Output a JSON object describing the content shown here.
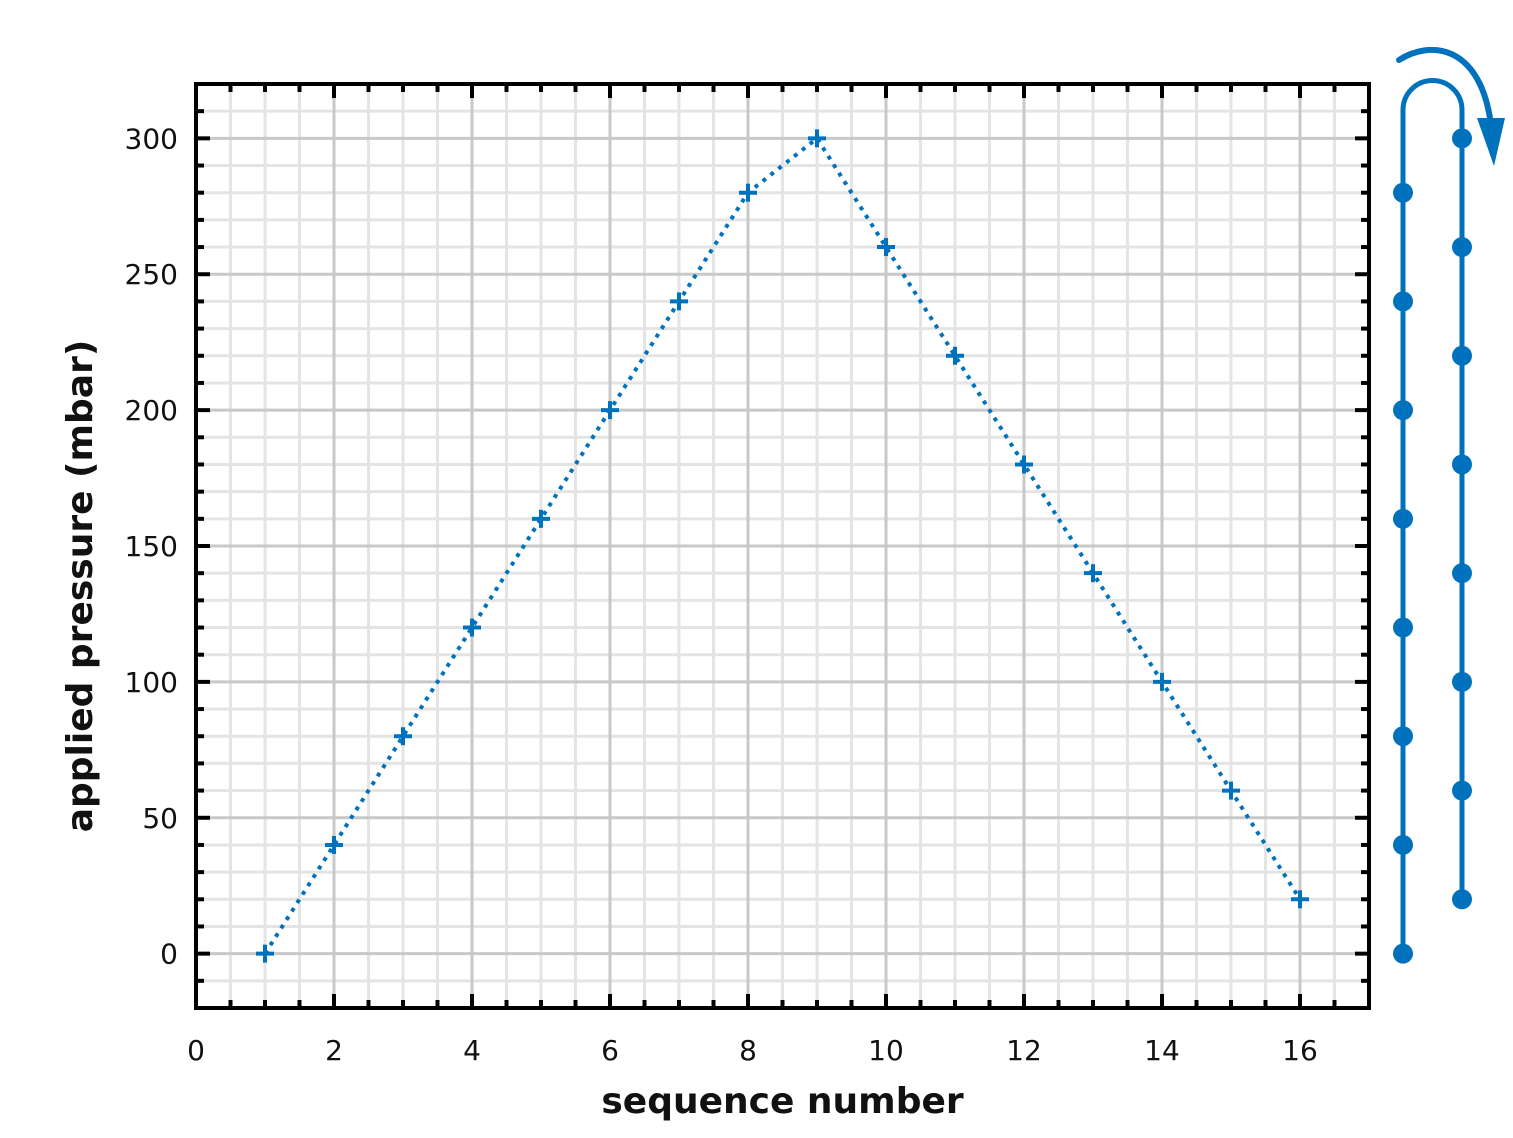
{
  "chart_data": {
    "type": "line",
    "title": "",
    "xlabel": "sequence number",
    "ylabel": "applied pressure (mbar)",
    "xlim": [
      0,
      17
    ],
    "ylim": [
      -20,
      320
    ],
    "x_ticks": [
      0,
      2,
      4,
      6,
      8,
      10,
      12,
      14,
      16
    ],
    "y_ticks": [
      0,
      50,
      100,
      150,
      200,
      250,
      300
    ],
    "x_minor_step": 0.5,
    "y_minor_step": 10,
    "grid": true,
    "series": [
      {
        "x": [
          1,
          2,
          3,
          4,
          5,
          6,
          7,
          8,
          9,
          10,
          11,
          12,
          13,
          14,
          15,
          16
        ],
        "y": [
          0,
          40,
          80,
          120,
          160,
          200,
          240,
          280,
          300,
          260,
          220,
          180,
          140,
          100,
          60,
          20
        ],
        "line_style": "dotted",
        "marker": "plus",
        "color": "#0072BD"
      }
    ],
    "side_schematic": {
      "description_shown": "ascending column of dots on left, descending column on right, joined by a loop arrow at top",
      "ascending_levels": [
        0,
        40,
        80,
        120,
        160,
        200,
        240,
        280
      ],
      "descending_levels": [
        300,
        260,
        220,
        180,
        140,
        100,
        60,
        20
      ],
      "color": "#0072BD"
    }
  }
}
